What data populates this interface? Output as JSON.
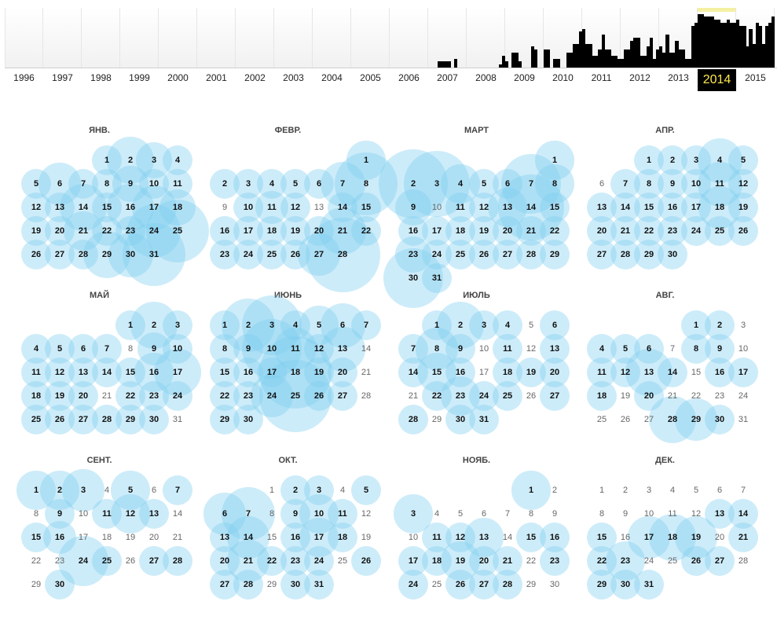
{
  "timeline": {
    "years": [
      {
        "label": "1996",
        "bars": []
      },
      {
        "label": "1997",
        "bars": []
      },
      {
        "label": "1998",
        "bars": []
      },
      {
        "label": "1999",
        "bars": []
      },
      {
        "label": "2000",
        "bars": []
      },
      {
        "label": "2001",
        "bars": []
      },
      {
        "label": "2002",
        "bars": []
      },
      {
        "label": "2003",
        "bars": []
      },
      {
        "label": "2004",
        "bars": []
      },
      {
        "label": "2005",
        "bars": []
      },
      {
        "label": "2006",
        "bars": []
      },
      {
        "label": "2007",
        "bars": [
          0,
          0,
          0,
          0.1,
          0.1,
          0.1,
          0.1,
          0,
          0.15,
          0,
          0,
          0
        ]
      },
      {
        "label": "2008",
        "bars": [
          0,
          0,
          0,
          0,
          0,
          0,
          0,
          0,
          0,
          0,
          0.05,
          0.2
        ]
      },
      {
        "label": "2009",
        "bars": [
          0.1,
          0,
          0.25,
          0.25,
          0.1,
          0,
          0,
          0,
          0.35,
          0.3,
          0,
          0
        ]
      },
      {
        "label": "2010",
        "bars": [
          0.3,
          0.3,
          0,
          0.15,
          0.15,
          0,
          0,
          0.25,
          0.25,
          0.4,
          0.4,
          0.6
        ]
      },
      {
        "label": "2011",
        "bars": [
          0.65,
          0.4,
          0.4,
          0.2,
          0.2,
          0.3,
          0.55,
          0.3,
          0.3,
          0.2,
          0.2,
          0.15
        ]
      },
      {
        "label": "2012",
        "bars": [
          0.15,
          0.3,
          0.3,
          0.45,
          0.5,
          0.5,
          0.2,
          0.2,
          0.35,
          0.5,
          0.15,
          0.3
        ]
      },
      {
        "label": "2013",
        "bars": [
          0.35,
          0.25,
          0.55,
          0.25,
          0.25,
          0.45,
          0.3,
          0.3,
          0.15,
          0.15,
          0.7,
          0.75
        ]
      },
      {
        "label": "2014",
        "bars": [
          0.9,
          0.9,
          0.85,
          0.85,
          0.85,
          0.8,
          0.8,
          0.75,
          0.75,
          0.8,
          0.75,
          0.75
        ]
      },
      {
        "label": "2015",
        "bars": [
          0.8,
          0.7,
          0.7,
          0.35,
          0.65,
          0.4,
          0.75,
          0.7,
          0.4,
          0.7,
          0.75,
          0.85
        ]
      }
    ],
    "selected": "2014"
  },
  "calendar": {
    "months": [
      {
        "name": "ЯНВ.",
        "offset": 3,
        "days": 31,
        "active": [
          1,
          2,
          3,
          4,
          5,
          6,
          7,
          8,
          9,
          10,
          11,
          12,
          13,
          14,
          15,
          16,
          17,
          18,
          19,
          20,
          21,
          22,
          23,
          24,
          25,
          26,
          27,
          28,
          29,
          30,
          31
        ],
        "big": {
          "2": 1.6,
          "3": 1.2,
          "6": 1.4,
          "9": 1.2,
          "14": 1.6,
          "16": 1.6,
          "17": 1.5,
          "18": 1.2,
          "21": 1.3,
          "24": 1.8,
          "25": 2.1,
          "29": 1.6,
          "30": 1.5,
          "31": 2.1
        }
      },
      {
        "name": "ФЕВР.",
        "offset": 6,
        "days": 28,
        "active": [
          1,
          2,
          3,
          4,
          5,
          6,
          7,
          8,
          10,
          11,
          12,
          14,
          15,
          16,
          17,
          18,
          19,
          20,
          21,
          22,
          23,
          24,
          25,
          26,
          27,
          28
        ],
        "big": {
          "1": 1.3,
          "7": 1.5,
          "8": 2.1,
          "11": 1.1,
          "21": 1.6,
          "27": 1.4,
          "28": 2.5
        }
      },
      {
        "name": "МАРТ",
        "offset": 6,
        "days": 31,
        "active": [
          1,
          2,
          3,
          4,
          5,
          6,
          7,
          8,
          9,
          11,
          12,
          13,
          14,
          15,
          16,
          17,
          18,
          19,
          20,
          21,
          22,
          23,
          24,
          25,
          26,
          27,
          28,
          29,
          30,
          31
        ],
        "big": {
          "1": 1.3,
          "2": 2.3,
          "3": 2.2,
          "4": 1.3,
          "7": 2.0,
          "8": 1.3,
          "9": 1.2,
          "13": 1.3,
          "14": 2.2,
          "23": 1.2,
          "28": 1.0,
          "30": 2.0
        }
      },
      {
        "name": "АПР.",
        "offset": 2,
        "days": 30,
        "active": [
          1,
          2,
          3,
          4,
          5,
          7,
          8,
          9,
          10,
          11,
          12,
          13,
          14,
          15,
          16,
          17,
          18,
          19,
          20,
          21,
          22,
          23,
          24,
          25,
          26,
          27,
          28,
          29,
          30
        ],
        "big": {
          "4": 1.5,
          "11": 1.5,
          "18": 1.4
        }
      },
      {
        "name": "МАЙ",
        "offset": 4,
        "days": 31,
        "active": [
          1,
          2,
          3,
          4,
          5,
          6,
          7,
          9,
          10,
          11,
          12,
          13,
          14,
          15,
          16,
          17,
          18,
          19,
          20,
          22,
          23,
          24,
          25,
          26,
          27,
          28,
          29,
          30
        ],
        "big": {
          "2": 1.6,
          "9": 1.1,
          "16": 1.3,
          "17": 1.6
        }
      },
      {
        "name": "ИЮНЬ",
        "offset": 0,
        "days": 30,
        "active": [
          1,
          2,
          3,
          4,
          5,
          6,
          7,
          8,
          9,
          10,
          11,
          12,
          13,
          15,
          16,
          17,
          18,
          19,
          20,
          22,
          23,
          24,
          25,
          26,
          27,
          29,
          30
        ],
        "big": {
          "2": 1.8,
          "3": 2.0,
          "5": 1.3,
          "6": 1.5,
          "10": 2.0,
          "11": 1.4,
          "13": 1.5,
          "18": 2.4,
          "24": 1.4,
          "25": 2.4
        }
      },
      {
        "name": "ИЮЛЬ",
        "offset": 1,
        "days": 31,
        "active": [
          1,
          2,
          3,
          4,
          6,
          7,
          8,
          9,
          11,
          13,
          14,
          15,
          16,
          18,
          19,
          20,
          22,
          23,
          24,
          25,
          27,
          28,
          30,
          31
        ],
        "big": {
          "2": 1.6,
          "8": 1.4,
          "15": 1.3,
          "23": 1.3
        }
      },
      {
        "name": "АВГ.",
        "offset": 4,
        "days": 31,
        "active": [
          1,
          2,
          4,
          5,
          6,
          8,
          9,
          11,
          12,
          13,
          14,
          16,
          17,
          18,
          20,
          28,
          29,
          30
        ],
        "big": {
          "13": 1.6,
          "28": 1.6,
          "29": 1.4
        }
      },
      {
        "name": "СЕНТ.",
        "offset": 0,
        "days": 30,
        "active": [
          1,
          2,
          3,
          5,
          7,
          9,
          11,
          12,
          13,
          15,
          16,
          24,
          25,
          27,
          28,
          30
        ],
        "big": {
          "1": 1.3,
          "2": 1.3,
          "3": 1.4,
          "5": 1.3,
          "12": 1.3,
          "16": 1.1,
          "24": 1.7
        }
      },
      {
        "name": "ОКТ.",
        "offset": 2,
        "days": 31,
        "active": [
          2,
          3,
          5,
          6,
          7,
          9,
          10,
          11,
          13,
          14,
          16,
          17,
          18,
          20,
          21,
          22,
          23,
          24,
          26,
          27,
          28,
          30,
          31
        ],
        "big": {
          "6": 1.4,
          "7": 1.8,
          "10": 1.3,
          "14": 1.4,
          "17": 1.3,
          "21": 1.4
        }
      },
      {
        "name": "НОЯБ.",
        "offset": 5,
        "days": 30,
        "active": [
          1,
          3,
          11,
          12,
          13,
          15,
          16,
          17,
          18,
          19,
          20,
          21,
          23,
          24,
          26,
          27,
          28
        ],
        "big": {
          "1": 1.3,
          "3": 1.3,
          "13": 1.3,
          "19": 1.3
        }
      },
      {
        "name": "ДЕК.",
        "offset": 0,
        "days": 31,
        "active": [
          13,
          14,
          15,
          17,
          18,
          19,
          21,
          22,
          23,
          26,
          27,
          29,
          30,
          31
        ],
        "big": {
          "17": 1.4,
          "18": 1.6,
          "19": 1.4,
          "23": 1.3
        }
      }
    ]
  }
}
